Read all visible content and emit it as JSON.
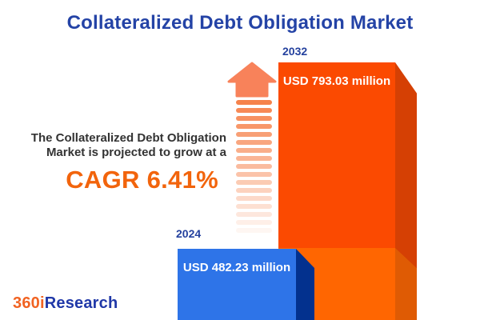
{
  "title": "Collateralized Debt Obligation Market",
  "projection": {
    "line1": "The Collateralized Debt Obligation",
    "line2": "Market is projected to grow at a",
    "cagr": "CAGR 6.41%"
  },
  "chart_data": {
    "type": "bar",
    "title": "Collateralized Debt Obligation Market",
    "categories": [
      "2024",
      "2032"
    ],
    "values": [
      482.23,
      793.03
    ],
    "unit": "USD million",
    "value_labels": [
      "USD 482.23 million",
      "USD 793.03 million"
    ],
    "growth_metric": "CAGR 6.41%",
    "legend_position": "none",
    "grid": false,
    "bar_colors": [
      "#2E74E8",
      "#FF6601"
    ]
  },
  "logo": {
    "part1": "360i",
    "part2": "Research"
  },
  "colors": {
    "title_blue": "#2443A6",
    "year_label_blue": "#24419E",
    "accent_orange": "#F2640C",
    "bar_2024_front": "#2E74E8",
    "bar_2024_side": "#03318E",
    "bar_2032_front_upper": "#FB4A01",
    "bar_2032_front_lower": "#FF6601",
    "bar_2032_side_upper": "#D54004",
    "bar_2032_side_lower": "#DF5B04",
    "arrow_orange": "#F8825A"
  }
}
